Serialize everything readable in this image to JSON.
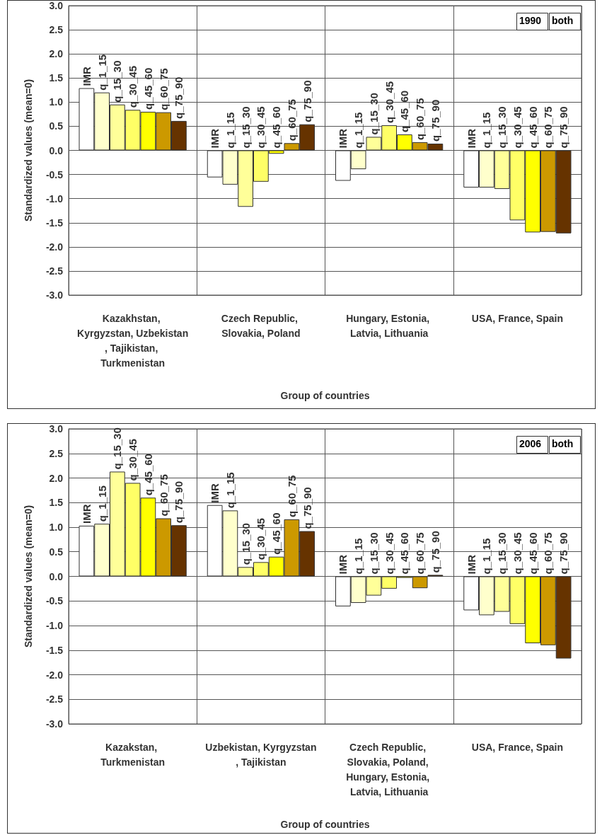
{
  "chart_data": [
    {
      "type": "bar",
      "xlabel": "Group of countries",
      "ylabel": "Standardized values (mean=0)",
      "categories": [
        "Kazakhstan, Kyrgyzstan, Uzbekistan, Tajikistan, Turkmenistan",
        "Czech Republic, Slovakia, Poland",
        "Hungary, Estonia, Latvia, Lithuania",
        "USA, France, Spain"
      ],
      "series": [
        {
          "name": "IMR",
          "color": "#ffffff",
          "values": [
            1.29,
            -0.56,
            -0.63,
            -0.77
          ]
        },
        {
          "name": "q_1_15",
          "color": "#ffffcc",
          "values": [
            1.2,
            -0.71,
            -0.39,
            -0.77
          ]
        },
        {
          "name": "q_15_30",
          "color": "#ffff99",
          "values": [
            0.95,
            -1.17,
            0.28,
            -0.8
          ]
        },
        {
          "name": "q_30_45",
          "color": "#ffff66",
          "values": [
            0.84,
            -0.65,
            0.52,
            -1.45
          ]
        },
        {
          "name": "q_45_60",
          "color": "#ffff00",
          "values": [
            0.8,
            -0.07,
            0.33,
            -1.7
          ]
        },
        {
          "name": "q_60_75",
          "color": "#cc9900",
          "values": [
            0.79,
            0.15,
            0.17,
            -1.69
          ]
        },
        {
          "name": "q_75_90",
          "color": "#663300",
          "values": [
            0.61,
            0.54,
            0.14,
            -1.72
          ]
        }
      ],
      "ylim": [
        -3,
        3
      ],
      "yticks": [
        {
          "value": -3,
          "label": "-3.0"
        },
        {
          "value": -2.5,
          "label": "-2.5"
        },
        {
          "value": -2,
          "label": "-2.0"
        },
        {
          "value": -1.5,
          "label": "-1.5"
        },
        {
          "value": -1,
          "label": "-1.0"
        },
        {
          "value": -0.5,
          "label": "-0.5"
        },
        {
          "value": 0,
          "label": "0.0"
        },
        {
          "value": 0.5,
          "label": "0.5"
        },
        {
          "value": 1,
          "label": "1.0"
        },
        {
          "value": 1.5,
          "label": "1.5"
        },
        {
          "value": 2,
          "label": "2.0"
        },
        {
          "value": 2.5,
          "label": "2.5"
        },
        {
          "value": 3,
          "label": "3.0"
        }
      ],
      "grid": true,
      "legend": false,
      "annotations": [
        "1990",
        "both"
      ]
    },
    {
      "type": "bar",
      "xlabel": "Group of countries",
      "ylabel": "Standardized values (mean=0)",
      "categories": [
        "Kazakstan, Turkmenistan",
        "Uzbekistan, Kyrgyzstan, Tajikistan",
        "Czech Republic, Slovakia, Poland, Hungary, Estonia, Latvia, Lithuania",
        "USA, France, Spain"
      ],
      "series": [
        {
          "name": "IMR",
          "color": "#ffffff",
          "values": [
            1.03,
            1.45,
            -0.61,
            -0.69
          ]
        },
        {
          "name": "q_1_15",
          "color": "#ffffcc",
          "values": [
            1.07,
            1.34,
            -0.54,
            -0.79
          ]
        },
        {
          "name": "q_15_30",
          "color": "#ffff99",
          "values": [
            2.13,
            0.19,
            -0.39,
            -0.72
          ]
        },
        {
          "name": "q_30_45",
          "color": "#ffff66",
          "values": [
            1.9,
            0.29,
            -0.25,
            -0.97
          ]
        },
        {
          "name": "q_45_60",
          "color": "#ffff00",
          "values": [
            1.6,
            0.4,
            -0.03,
            -1.36
          ]
        },
        {
          "name": "q_60_75",
          "color": "#cc9900",
          "values": [
            1.18,
            1.16,
            -0.24,
            -1.4
          ]
        },
        {
          "name": "q_75_90",
          "color": "#663300",
          "values": [
            1.04,
            0.92,
            0.03,
            -1.67
          ]
        }
      ],
      "ylim": [
        -3,
        3
      ],
      "yticks": [
        {
          "value": -3,
          "label": "-3.0"
        },
        {
          "value": -2.5,
          "label": "-2.5"
        },
        {
          "value": -2,
          "label": "-2.0"
        },
        {
          "value": -1.5,
          "label": "-1.5"
        },
        {
          "value": -1,
          "label": "-1.0"
        },
        {
          "value": -0.5,
          "label": "-0.5"
        },
        {
          "value": 0,
          "label": "0.0"
        },
        {
          "value": 0.5,
          "label": "0.5"
        },
        {
          "value": 1,
          "label": "1.0"
        },
        {
          "value": 1.5,
          "label": "1.5"
        },
        {
          "value": 2,
          "label": "2.0"
        },
        {
          "value": 2.5,
          "label": "2.5"
        },
        {
          "value": 3,
          "label": "3.0"
        }
      ],
      "grid": true,
      "legend": false,
      "annotations": [
        "2006",
        "both"
      ]
    }
  ]
}
